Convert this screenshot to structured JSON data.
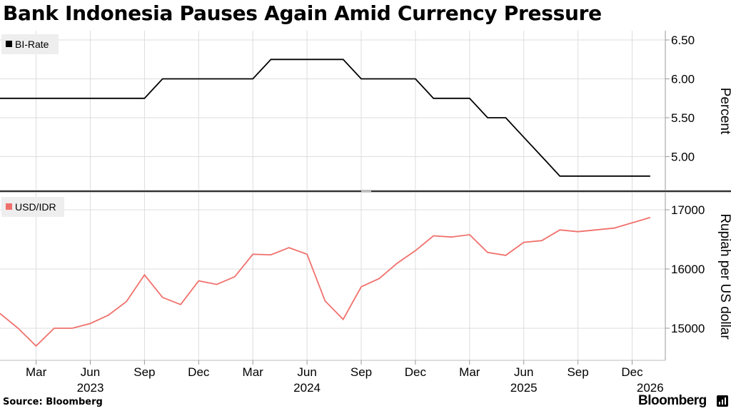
{
  "title": "Bank Indonesia Pauses Again Amid Currency Pressure",
  "source_label": "Source: Bloomberg",
  "brand": "Bloomberg",
  "colors": {
    "rate": "#000000",
    "fx": "#f0716c",
    "grid": "#dddddd",
    "divider": "#333333",
    "legend_bg": "#eeeeee"
  },
  "chart_data": [
    {
      "type": "line",
      "legend": "BI-Rate",
      "ylabel": "Percent",
      "ylim": [
        4.6,
        6.6
      ],
      "yticks": [
        5.0,
        5.5,
        6.0,
        6.5
      ],
      "ytick_labels": [
        "5.00",
        "5.50",
        "6.00",
        "6.50"
      ],
      "grid": true,
      "legend_position": "top-left",
      "x": [
        "2023-01",
        "2023-02",
        "2023-03",
        "2023-04",
        "2023-05",
        "2023-06",
        "2023-07",
        "2023-08",
        "2023-09",
        "2023-10",
        "2023-11",
        "2023-12",
        "2024-01",
        "2024-02",
        "2024-03",
        "2024-04",
        "2024-05",
        "2024-06",
        "2024-07",
        "2024-08",
        "2024-09",
        "2024-10",
        "2024-11",
        "2024-12",
        "2025-01",
        "2025-02",
        "2025-03",
        "2025-04",
        "2025-05",
        "2025-06",
        "2025-07",
        "2025-08",
        "2025-09",
        "2025-10",
        "2025-11",
        "2025-12",
        "2026-01"
      ],
      "values": [
        5.75,
        5.75,
        5.75,
        5.75,
        5.75,
        5.75,
        5.75,
        5.75,
        5.75,
        6.0,
        6.0,
        6.0,
        6.0,
        6.0,
        6.0,
        6.25,
        6.25,
        6.25,
        6.25,
        6.25,
        6.0,
        6.0,
        6.0,
        6.0,
        5.75,
        5.75,
        5.75,
        5.5,
        5.5,
        5.25,
        5.0,
        4.75,
        4.75,
        4.75,
        4.75,
        4.75,
        4.75
      ],
      "step": true
    },
    {
      "type": "line",
      "legend": "USD/IDR",
      "ylabel": "Rupiah per US dollar",
      "ylim": [
        14450,
        17250
      ],
      "yticks": [
        15000,
        16000,
        17000
      ],
      "ytick_labels": [
        "15000",
        "16000",
        "17000"
      ],
      "grid": true,
      "legend_position": "top-left",
      "x": [
        "2023-01",
        "2023-02",
        "2023-03",
        "2023-04",
        "2023-05",
        "2023-06",
        "2023-07",
        "2023-08",
        "2023-09",
        "2023-10",
        "2023-11",
        "2023-12",
        "2024-01",
        "2024-02",
        "2024-03",
        "2024-04",
        "2024-05",
        "2024-06",
        "2024-07",
        "2024-08",
        "2024-09",
        "2024-10",
        "2024-11",
        "2024-12",
        "2025-01",
        "2025-02",
        "2025-03",
        "2025-04",
        "2025-05",
        "2025-06",
        "2025-07",
        "2025-08",
        "2025-09",
        "2025-10",
        "2025-11",
        "2025-12",
        "2026-01"
      ],
      "values": [
        15250,
        15000,
        14700,
        15000,
        15000,
        15080,
        15220,
        15450,
        15900,
        15520,
        15400,
        15800,
        15740,
        15870,
        16250,
        16240,
        16360,
        16250,
        15460,
        15150,
        15700,
        15840,
        16100,
        16310,
        16560,
        16540,
        16580,
        16280,
        16230,
        16450,
        16480,
        16660,
        16630,
        16660,
        16690,
        16780,
        16870
      ]
    }
  ],
  "x_axis": {
    "ticks": [
      {
        "date": "2023-03",
        "label": "Mar"
      },
      {
        "date": "2023-06",
        "label": "Jun"
      },
      {
        "date": "2023-09",
        "label": "Sep"
      },
      {
        "date": "2023-12",
        "label": "Dec"
      },
      {
        "date": "2024-03",
        "label": "Mar"
      },
      {
        "date": "2024-06",
        "label": "Jun"
      },
      {
        "date": "2024-09",
        "label": "Sep"
      },
      {
        "date": "2024-12",
        "label": "Dec"
      },
      {
        "date": "2025-03",
        "label": "Mar"
      },
      {
        "date": "2025-06",
        "label": "Jun"
      },
      {
        "date": "2025-09",
        "label": "Sep"
      },
      {
        "date": "2025-12",
        "label": "Dec"
      }
    ],
    "years": [
      {
        "date": "2023-06",
        "label": "2023"
      },
      {
        "date": "2024-06",
        "label": "2024"
      },
      {
        "date": "2025-06",
        "label": "2025"
      },
      {
        "date": "2026-01",
        "label": "2026"
      }
    ]
  }
}
